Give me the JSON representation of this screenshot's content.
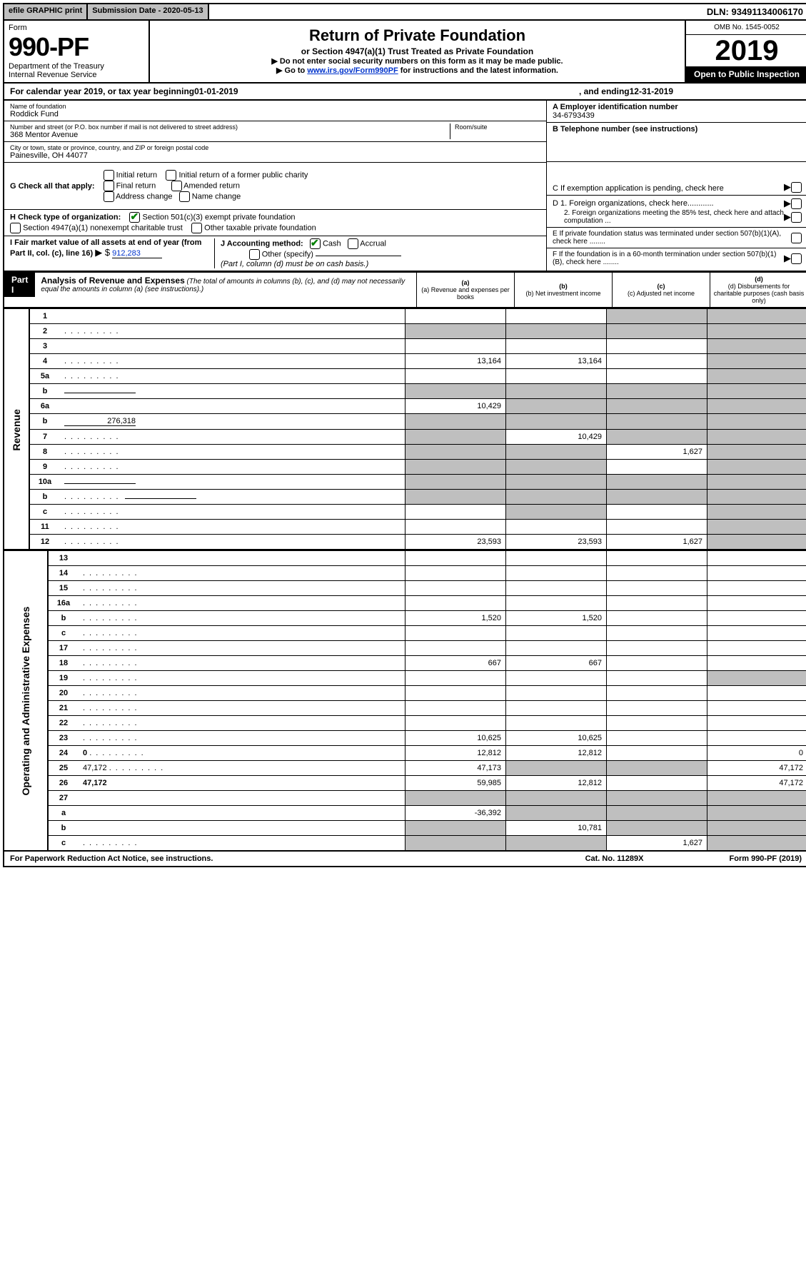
{
  "topbar": {
    "efile": "efile GRAPHIC print",
    "submission_label": "Submission Date - ",
    "submission_date": "2020-05-13",
    "dln_label": "DLN: ",
    "dln": "93491134006170"
  },
  "header": {
    "form_word": "Form",
    "form_number": "990-PF",
    "dept1": "Department of the Treasury",
    "dept2": "Internal Revenue Service",
    "title": "Return of Private Foundation",
    "subtitle": "or Section 4947(a)(1) Trust Treated as Private Foundation",
    "note1": "▶ Do not enter social security numbers on this form as it may be made public.",
    "note2_pre": "▶ Go to ",
    "note2_link": "www.irs.gov/Form990PF",
    "note2_post": " for instructions and the latest information.",
    "omb": "OMB No. 1545-0052",
    "year": "2019",
    "inspect": "Open to Public Inspection"
  },
  "calendar": {
    "pre": "For calendar year 2019, or tax year beginning ",
    "begin": "01-01-2019",
    "mid": " , and ending ",
    "end": "12-31-2019"
  },
  "ident": {
    "name_label": "Name of foundation",
    "name": "Roddick Fund",
    "addr_label": "Number and street (or P.O. box number if mail is not delivered to street address)",
    "addr": "368 Mentor Avenue",
    "room_label": "Room/suite",
    "city_label": "City or town, state or province, country, and ZIP or foreign postal code",
    "city": "Painesville, OH  44077",
    "ein_label": "A Employer identification number",
    "ein": "34-6793439",
    "tel_label": "B Telephone number (see instructions)",
    "c_label": "C  If exemption application is pending, check here",
    "d1": "D 1. Foreign organizations, check here............",
    "d2": "2. Foreign organizations meeting the 85% test, check here and attach computation ...",
    "e": "E  If private foundation status was terminated under section 507(b)(1)(A), check here ........",
    "f": "F  If the foundation is in a 60-month termination under section 507(b)(1)(B), check here ........"
  },
  "g": {
    "label": "G Check all that apply:",
    "initial": "Initial return",
    "initial_former": "Initial return of a former public charity",
    "final": "Final return",
    "amended": "Amended return",
    "addr_change": "Address change",
    "name_change": "Name change"
  },
  "h": {
    "label": "H Check type of organization:",
    "opt1": "Section 501(c)(3) exempt private foundation",
    "opt2": "Section 4947(a)(1) nonexempt charitable trust",
    "opt3": "Other taxable private foundation"
  },
  "i": {
    "label": "I Fair market value of all assets at end of year (from Part II, col. (c), line 16)",
    "arrow": "▶ $",
    "value": "912,283"
  },
  "j": {
    "label": "J Accounting method:",
    "cash": "Cash",
    "accrual": "Accrual",
    "other": "Other (specify)",
    "note": "(Part I, column (d) must be on cash basis.)"
  },
  "part1": {
    "label": "Part I",
    "title": "Analysis of Revenue and Expenses",
    "note": "(The total of amounts in columns (b), (c), and (d) may not necessarily equal the amounts in column (a) (see instructions).)",
    "col_a": "(a) Revenue and expenses per books",
    "col_b": "(b) Net investment income",
    "col_c": "(c) Adjusted net income",
    "col_d": "(d) Disbursements for charitable purposes (cash basis only)"
  },
  "revenue_tab": "Revenue",
  "expense_tab": "Operating and Administrative Expenses",
  "rows": [
    {
      "n": "1",
      "d": "",
      "a": "",
      "b": "",
      "c": "",
      "shade": [
        "c",
        "d"
      ]
    },
    {
      "n": "2",
      "d": "",
      "dots": true,
      "a": "",
      "b": "",
      "c": "",
      "shade": [
        "a",
        "b",
        "c",
        "d"
      ]
    },
    {
      "n": "3",
      "d": "",
      "a": "",
      "b": "",
      "c": "",
      "shade": [
        "d"
      ]
    },
    {
      "n": "4",
      "d": "",
      "dots": true,
      "a": "13,164",
      "b": "13,164",
      "c": "",
      "shade": [
        "d"
      ]
    },
    {
      "n": "5a",
      "d": "",
      "dots": true,
      "a": "",
      "b": "",
      "c": "",
      "shade": [
        "d"
      ]
    },
    {
      "n": "b",
      "d": "",
      "line": true,
      "a": "",
      "b": "",
      "c": "",
      "shade": [
        "a",
        "b",
        "c",
        "d"
      ]
    },
    {
      "n": "6a",
      "d": "",
      "a": "10,429",
      "b": "",
      "c": "",
      "shade": [
        "b",
        "c",
        "d"
      ]
    },
    {
      "n": "b",
      "d": "",
      "line": true,
      "lineval": "276,318",
      "a": "",
      "b": "",
      "c": "",
      "shade": [
        "a",
        "b",
        "c",
        "d"
      ]
    },
    {
      "n": "7",
      "d": "",
      "dots": true,
      "a": "",
      "b": "10,429",
      "c": "",
      "shade": [
        "a",
        "c",
        "d"
      ]
    },
    {
      "n": "8",
      "d": "",
      "dots": true,
      "a": "",
      "b": "",
      "c": "1,627",
      "shade": [
        "a",
        "b",
        "d"
      ]
    },
    {
      "n": "9",
      "d": "",
      "dots": true,
      "a": "",
      "b": "",
      "c": "",
      "shade": [
        "a",
        "b",
        "d"
      ]
    },
    {
      "n": "10a",
      "d": "",
      "line": true,
      "a": "",
      "b": "",
      "c": "",
      "shade": [
        "a",
        "b",
        "c",
        "d"
      ]
    },
    {
      "n": "b",
      "d": "",
      "dots": true,
      "line": true,
      "a": "",
      "b": "",
      "c": "",
      "shade": [
        "a",
        "b",
        "c",
        "d"
      ]
    },
    {
      "n": "c",
      "d": "",
      "dots": true,
      "a": "",
      "b": "",
      "c": "",
      "shade": [
        "b",
        "d"
      ]
    },
    {
      "n": "11",
      "d": "",
      "dots": true,
      "a": "",
      "b": "",
      "c": "",
      "shade": [
        "d"
      ]
    },
    {
      "n": "12",
      "d": "",
      "bold": true,
      "dots": true,
      "a": "23,593",
      "b": "23,593",
      "c": "1,627",
      "shade": [
        "d"
      ]
    }
  ],
  "exp_rows": [
    {
      "n": "13",
      "d": "",
      "a": "",
      "b": "",
      "c": ""
    },
    {
      "n": "14",
      "d": "",
      "dots": true,
      "a": "",
      "b": "",
      "c": ""
    },
    {
      "n": "15",
      "d": "",
      "dots": true,
      "a": "",
      "b": "",
      "c": ""
    },
    {
      "n": "16a",
      "d": "",
      "dots": true,
      "a": "",
      "b": "",
      "c": ""
    },
    {
      "n": "b",
      "d": "",
      "dots": true,
      "a": "1,520",
      "b": "1,520",
      "c": ""
    },
    {
      "n": "c",
      "d": "",
      "dots": true,
      "a": "",
      "b": "",
      "c": ""
    },
    {
      "n": "17",
      "d": "",
      "dots": true,
      "a": "",
      "b": "",
      "c": ""
    },
    {
      "n": "18",
      "d": "",
      "dots": true,
      "a": "667",
      "b": "667",
      "c": ""
    },
    {
      "n": "19",
      "d": "",
      "dots": true,
      "a": "",
      "b": "",
      "c": "",
      "shade": [
        "d"
      ]
    },
    {
      "n": "20",
      "d": "",
      "dots": true,
      "a": "",
      "b": "",
      "c": ""
    },
    {
      "n": "21",
      "d": "",
      "dots": true,
      "a": "",
      "b": "",
      "c": ""
    },
    {
      "n": "22",
      "d": "",
      "dots": true,
      "a": "",
      "b": "",
      "c": ""
    },
    {
      "n": "23",
      "d": "",
      "dots": true,
      "a": "10,625",
      "b": "10,625",
      "c": ""
    },
    {
      "n": "24",
      "d": "0",
      "bold": true,
      "dots": true,
      "a": "12,812",
      "b": "12,812",
      "c": ""
    },
    {
      "n": "25",
      "d": "47,172",
      "dots": true,
      "a": "47,173",
      "b": "",
      "c": "",
      "shade": [
        "b",
        "c"
      ]
    },
    {
      "n": "26",
      "d": "47,172",
      "bold": true,
      "a": "59,985",
      "b": "12,812",
      "c": ""
    },
    {
      "n": "27",
      "d": "",
      "a": "",
      "b": "",
      "c": "",
      "shade": [
        "a",
        "b",
        "c",
        "d"
      ]
    },
    {
      "n": "a",
      "d": "",
      "bold": true,
      "a": "-36,392",
      "b": "",
      "c": "",
      "shade": [
        "b",
        "c",
        "d"
      ]
    },
    {
      "n": "b",
      "d": "",
      "bold": true,
      "a": "",
      "b": "10,781",
      "c": "",
      "shade": [
        "a",
        "c",
        "d"
      ]
    },
    {
      "n": "c",
      "d": "",
      "bold": true,
      "dots": true,
      "a": "",
      "b": "",
      "c": "1,627",
      "shade": [
        "a",
        "b",
        "d"
      ]
    }
  ],
  "footer": {
    "paperwork": "For Paperwork Reduction Act Notice, see instructions.",
    "cat": "Cat. No. 11289X",
    "form": "Form 990-PF (2019)"
  }
}
